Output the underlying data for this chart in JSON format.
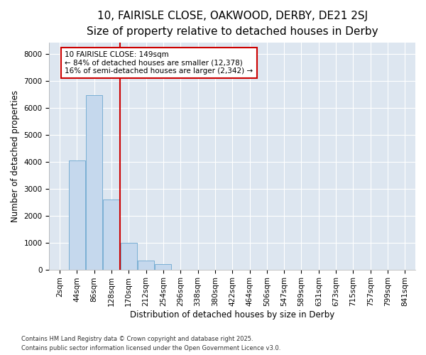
{
  "title1": "10, FAIRISLE CLOSE, OAKWOOD, DERBY, DE21 2SJ",
  "title2": "Size of property relative to detached houses in Derby",
  "xlabel": "Distribution of detached houses by size in Derby",
  "ylabel": "Number of detached properties",
  "categories": [
    "2sqm",
    "44sqm",
    "86sqm",
    "128sqm",
    "170sqm",
    "212sqm",
    "254sqm",
    "296sqm",
    "338sqm",
    "380sqm",
    "422sqm",
    "464sqm",
    "506sqm",
    "547sqm",
    "589sqm",
    "631sqm",
    "673sqm",
    "715sqm",
    "757sqm",
    "799sqm",
    "841sqm"
  ],
  "values": [
    0,
    4050,
    6450,
    2600,
    1000,
    320,
    200,
    0,
    0,
    0,
    0,
    0,
    0,
    0,
    0,
    0,
    0,
    0,
    0,
    0,
    0
  ],
  "bar_color": "#c5d8ed",
  "bar_edge_color": "#7aafd4",
  "vline_x": 3.5,
  "vline_color": "#cc0000",
  "annotation_text": "10 FAIRISLE CLOSE: 149sqm\n← 84% of detached houses are smaller (12,378)\n16% of semi-detached houses are larger (2,342) →",
  "annotation_box_color": "#ffffff",
  "annotation_box_edge": "#cc0000",
  "ylim": [
    0,
    8400
  ],
  "yticks": [
    0,
    1000,
    2000,
    3000,
    4000,
    5000,
    6000,
    7000,
    8000
  ],
  "bg_color": "#dde6f0",
  "footer1": "Contains HM Land Registry data © Crown copyright and database right 2025.",
  "footer2": "Contains public sector information licensed under the Open Government Licence v3.0.",
  "title_fontsize": 11,
  "subtitle_fontsize": 9.5,
  "axis_label_fontsize": 8.5,
  "tick_fontsize": 7.5,
  "annotation_fontsize": 7.5
}
